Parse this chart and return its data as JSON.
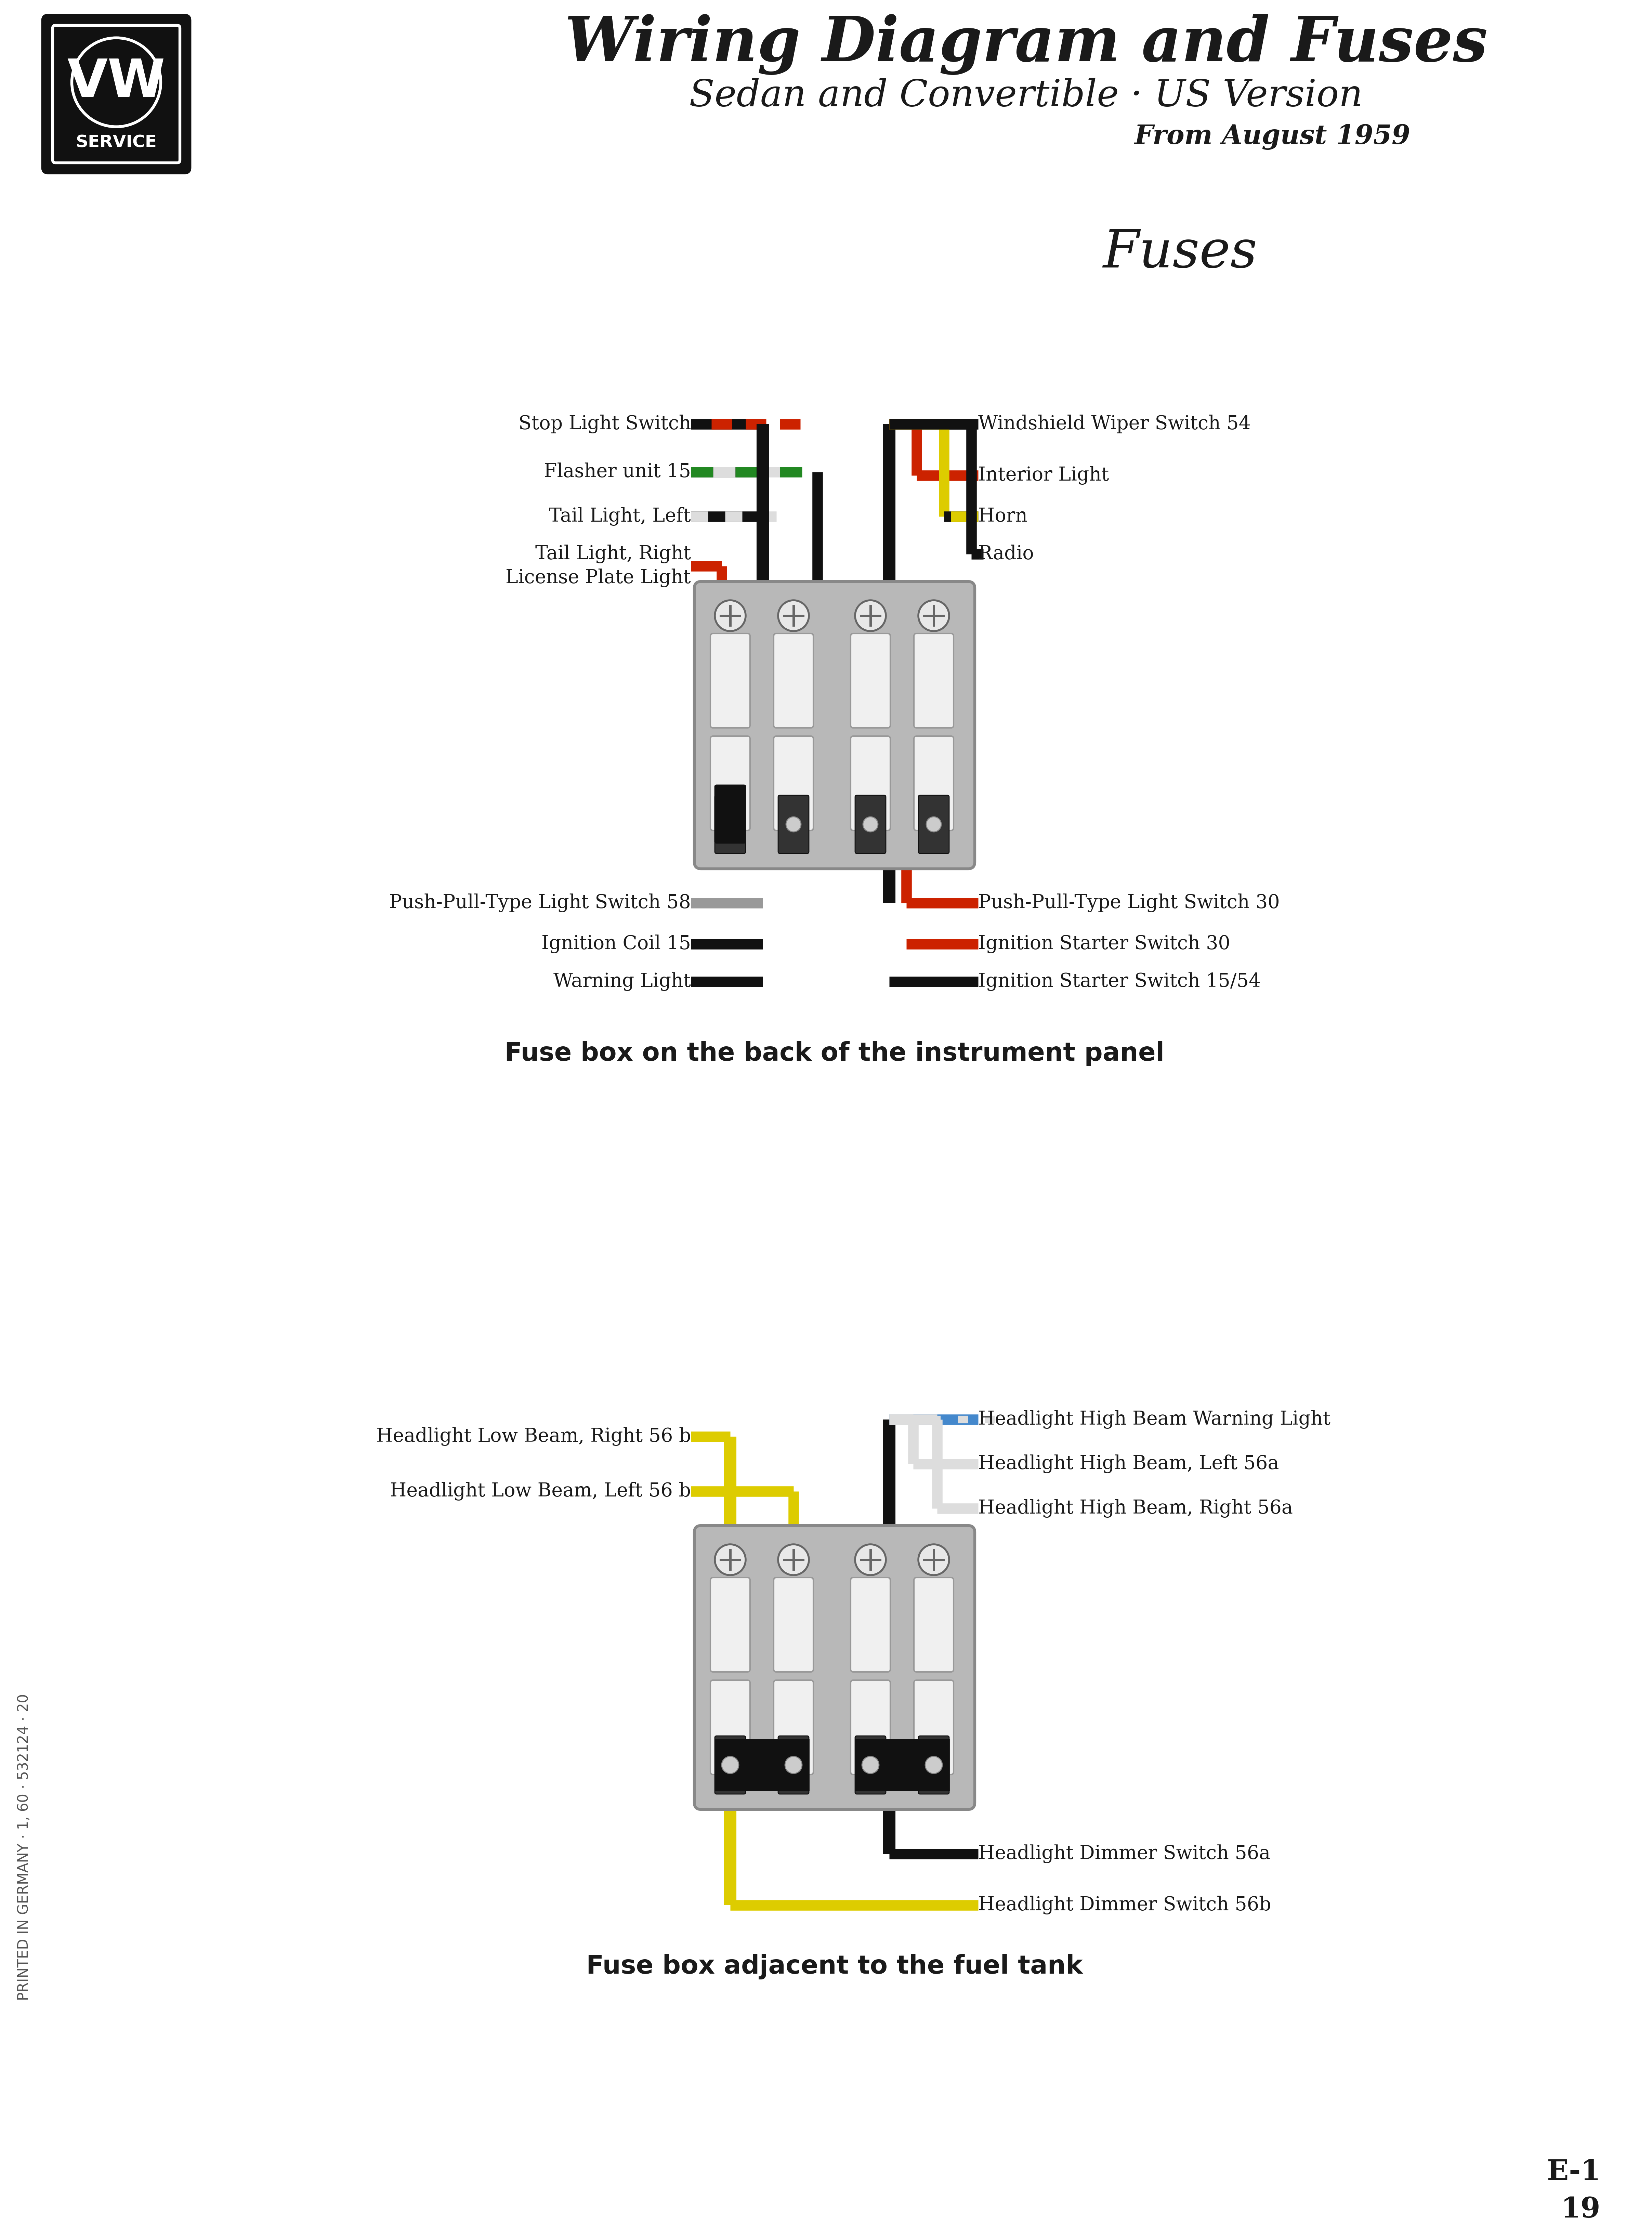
{
  "title1": "Wiring Diagram and Fuses",
  "title2": "Sedan and Convertible · US Version",
  "title3": "From August 1959",
  "section1_title": "Fuses",
  "section1_caption": "Fuse box on the back of the instrument panel",
  "section2_caption": "Fuse box adjacent to the fuel tank",
  "print_text": "PRINTED IN GERMANY · 1, 60 · 532124 · 20",
  "bg_color": "#ffffff",
  "text_color": "#1a1a1a",
  "wire_black": "#111111",
  "wire_red": "#cc2200",
  "wire_green": "#228822",
  "wire_yellow": "#ddcc00",
  "wire_white": "#dddddd",
  "wire_gray": "#999999",
  "wire_blue": "#4488cc",
  "fuse_box_fill": "#b8b8b8",
  "fuse_box_edge": "#888888",
  "fuse_fill": "#e8e8e8",
  "fuse_edge": "#666666",
  "clip_fill": "#222222",
  "clip_fill_black": "#111111"
}
